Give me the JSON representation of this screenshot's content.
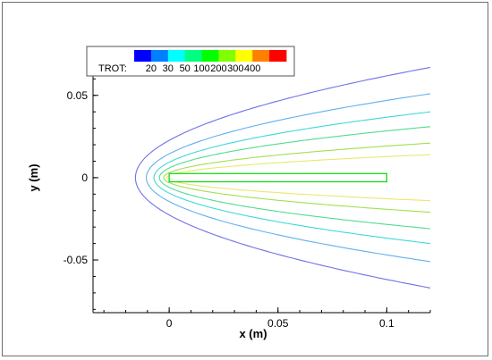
{
  "chart_data": {
    "type": "contour",
    "xlabel": "x (m)",
    "ylabel": "y (m)",
    "xlim": [
      -0.035,
      0.12
    ],
    "ylim": [
      -0.082,
      0.077
    ],
    "x_ticks": [
      {
        "value": 0,
        "label": "0"
      },
      {
        "value": 0.05,
        "label": "0.05"
      },
      {
        "value": 0.1,
        "label": "0.1"
      }
    ],
    "y_ticks": [
      {
        "value": 0.05,
        "label": "0.05"
      },
      {
        "value": 0,
        "label": "0"
      },
      {
        "value": -0.05,
        "label": "-0.05"
      }
    ],
    "legend": {
      "variable": "TROT:",
      "placement": "top-left",
      "levels": [
        {
          "label": "",
          "color": "#0000ff"
        },
        {
          "label": "20",
          "color": "#0080ff"
        },
        {
          "label": "30",
          "color": "#00ffff"
        },
        {
          "label": "50",
          "color": "#00ff80"
        },
        {
          "label": "100",
          "color": "#00ff00"
        },
        {
          "label": "200",
          "color": "#80ff00"
        },
        {
          "label": "300",
          "color": "#ffff00"
        },
        {
          "label": "400",
          "color": "#ff8000"
        },
        {
          "label": "",
          "color": "#ff0000"
        }
      ]
    },
    "body": {
      "x": [
        0,
        0.1
      ],
      "y": [
        -0.0025,
        0.0025
      ],
      "color": "#00dd00"
    },
    "contours": [
      {
        "level": 20,
        "color": "#7070e8",
        "nose_x": -0.0155,
        "y_at_right": 0.067
      },
      {
        "level": 30,
        "color": "#60b0f0",
        "nose_x": -0.0105,
        "y_at_right": 0.051
      },
      {
        "level": 50,
        "color": "#40d8d8",
        "nose_x": -0.007,
        "y_at_right": 0.04
      },
      {
        "level": 100,
        "color": "#50dc90",
        "nose_x": -0.0045,
        "y_at_right": 0.031
      },
      {
        "level": 200,
        "color": "#a0e050",
        "nose_x": -0.0025,
        "y_at_right": 0.021
      },
      {
        "level": 300,
        "color": "#e8e870",
        "nose_x": -0.001,
        "y_at_right": 0.014
      }
    ]
  }
}
